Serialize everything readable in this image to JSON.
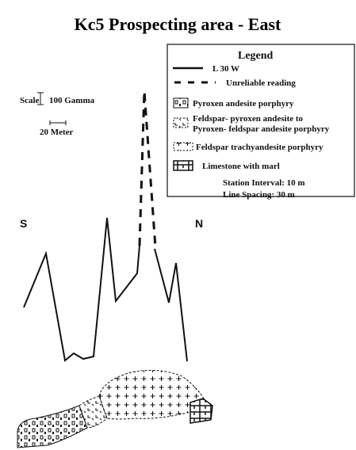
{
  "header": {
    "title": "Kc5 Prospecting area - East"
  },
  "legend": {
    "title": "Legend",
    "items": [
      "L 30 W",
      "Unreliable reading",
      "Pyroxen andesite porphyry",
      "Feldspar- pyroxen  andesite to",
      "Pyroxen- feldspar andesite porphyry",
      "Feldspar trachyandesite porphyry",
      "Limestone with marl"
    ],
    "notes": [
      "Station Interval: 10 m",
      "Line Spacing: 30 m"
    ]
  },
  "scale": {
    "label": "Scale",
    "vertical": "100 Gamma",
    "horizontal": "20 Meter"
  },
  "directions": {
    "left": "S",
    "right": "N"
  }
}
